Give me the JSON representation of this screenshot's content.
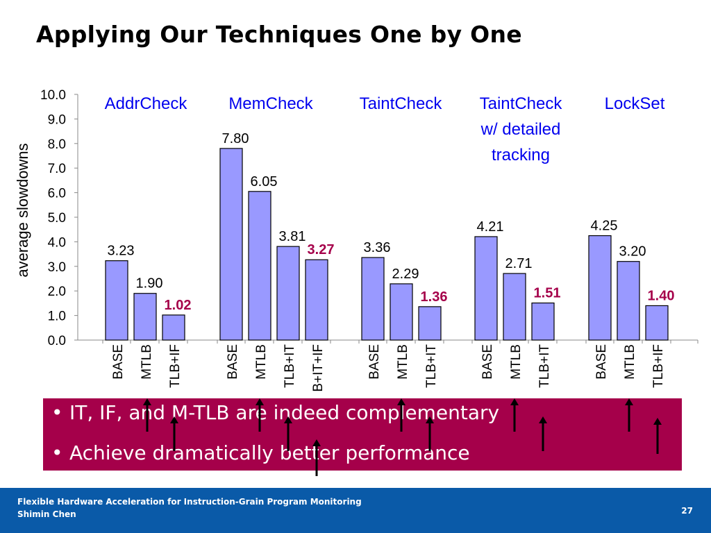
{
  "slide": {
    "title": "Applying Our Techniques One by One",
    "bullets": [
      "IT, IF, and M-TLB are indeed complementary",
      "Achieve dramatically better performance"
    ],
    "bullet_glyph": "•",
    "footer": {
      "line1": "Flexible Hardware Acceleration for Instruction-Grain Program Monitoring",
      "line2": "Shimin Chen",
      "page": "27"
    },
    "colors": {
      "bar_fill": "#9999ff",
      "highlight_label": "#a5004a",
      "group_label": "#0000ee",
      "callout_bg": "#a5004a",
      "footer_bg": "#0a5aa8"
    }
  },
  "chart_data": {
    "type": "bar",
    "ylabel": "average slowdowns",
    "ylim": [
      0,
      10
    ],
    "yticks": [
      "0.0",
      "1.0",
      "2.0",
      "3.0",
      "4.0",
      "5.0",
      "6.0",
      "7.0",
      "8.0",
      "9.0",
      "10.0"
    ],
    "groups": [
      {
        "name": [
          "AddrCheck"
        ],
        "bars": [
          {
            "category": "BASE",
            "value": 3.23,
            "label": "3.23",
            "highlight": false
          },
          {
            "category": "MTLB",
            "value": 1.9,
            "label": "1.90",
            "highlight": false
          },
          {
            "category": "TLB+IF",
            "value": 1.02,
            "label": "1.02",
            "highlight": true
          }
        ]
      },
      {
        "name": [
          "MemCheck"
        ],
        "bars": [
          {
            "category": "BASE",
            "value": 7.8,
            "label": "7.80",
            "highlight": false
          },
          {
            "category": "MTLB",
            "value": 6.05,
            "label": "6.05",
            "highlight": false
          },
          {
            "category": "TLB+IT",
            "value": 3.81,
            "label": "3.81",
            "highlight": false
          },
          {
            "category": "B+IT+IF",
            "value": 3.27,
            "label": "3.27",
            "highlight": true
          }
        ]
      },
      {
        "name": [
          "TaintCheck"
        ],
        "bars": [
          {
            "category": "BASE",
            "value": 3.36,
            "label": "3.36",
            "highlight": false
          },
          {
            "category": "MTLB",
            "value": 2.29,
            "label": "2.29",
            "highlight": false
          },
          {
            "category": "TLB+IT",
            "value": 1.36,
            "label": "1.36",
            "highlight": true
          }
        ]
      },
      {
        "name": [
          "TaintCheck",
          "w/ detailed",
          "tracking"
        ],
        "bars": [
          {
            "category": "BASE",
            "value": 4.21,
            "label": "4.21",
            "highlight": false
          },
          {
            "category": "MTLB",
            "value": 2.71,
            "label": "2.71",
            "highlight": false
          },
          {
            "category": "TLB+IT",
            "value": 1.51,
            "label": "1.51",
            "highlight": true
          }
        ]
      },
      {
        "name": [
          "LockSet"
        ],
        "bars": [
          {
            "category": "BASE",
            "value": 4.25,
            "label": "4.25",
            "highlight": false
          },
          {
            "category": "MTLB",
            "value": 3.2,
            "label": "3.20",
            "highlight": false
          },
          {
            "category": "TLB+IF",
            "value": 1.4,
            "label": "1.40",
            "highlight": true
          }
        ]
      }
    ]
  }
}
